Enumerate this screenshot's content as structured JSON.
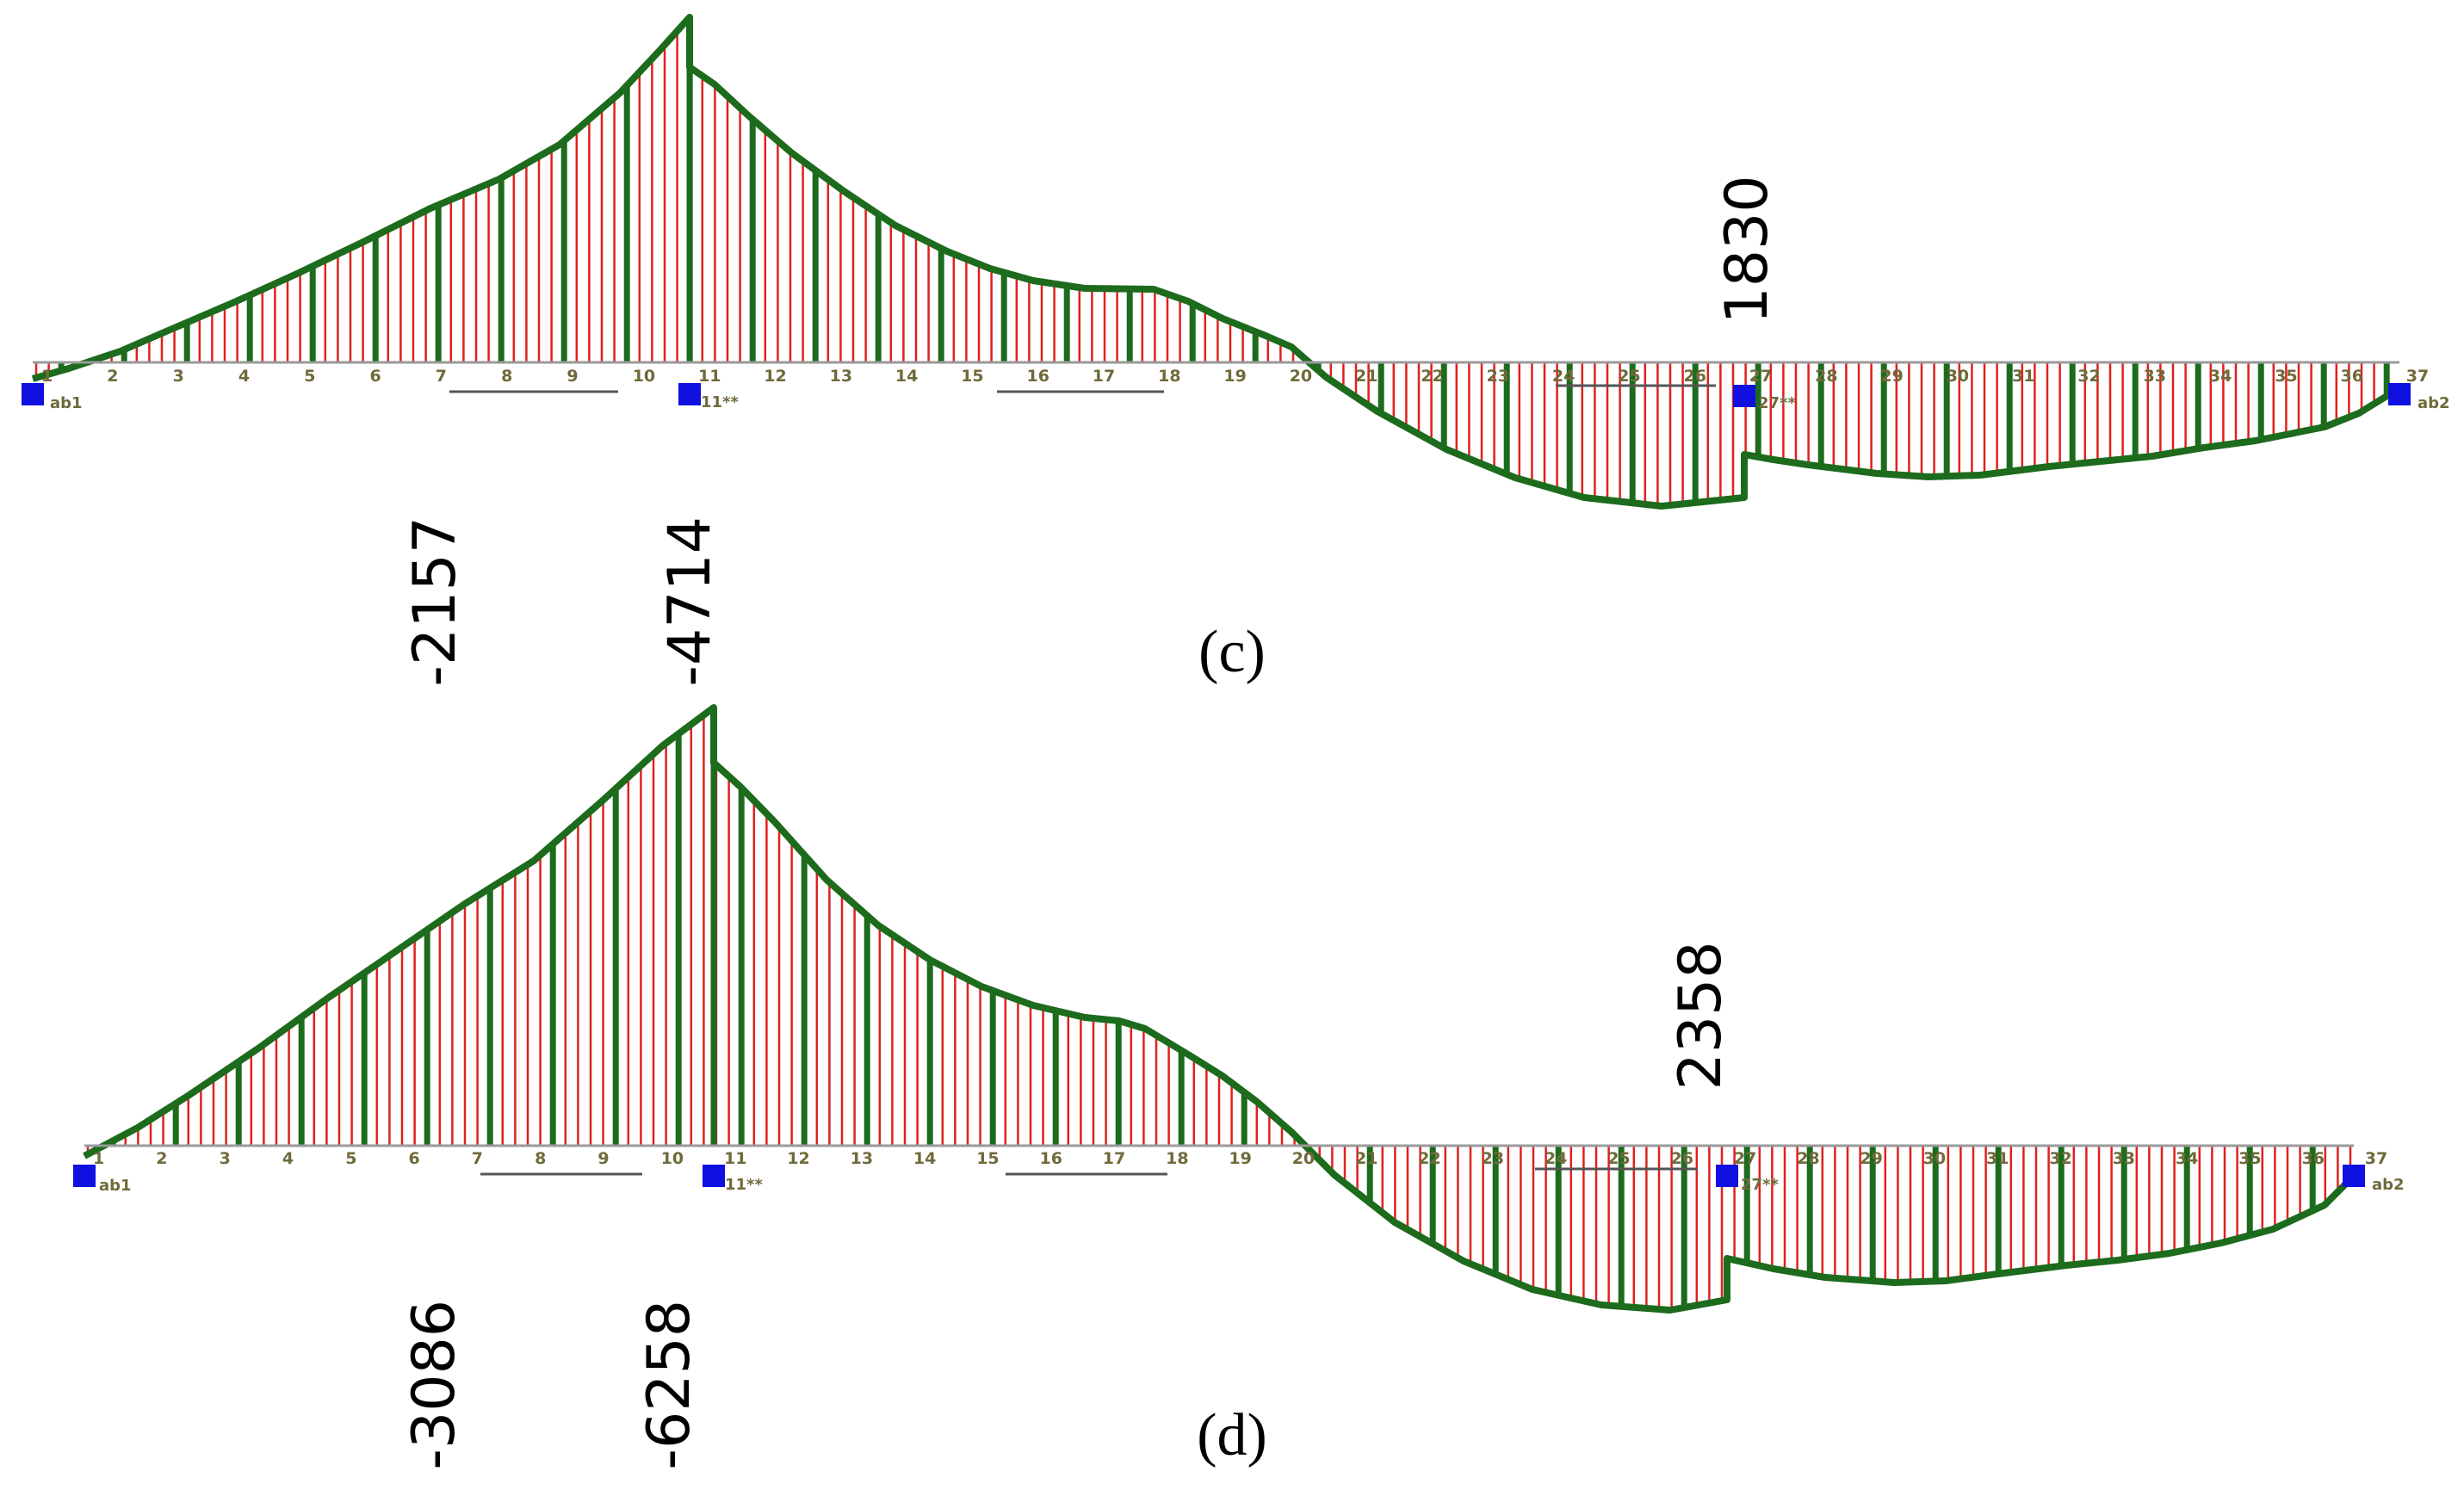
{
  "diagrams": [
    {
      "id": "c",
      "caption": "(c)",
      "values": [
        {
          "text": "-2157"
        },
        {
          "text": "-4714"
        },
        {
          "text": "1830"
        }
      ],
      "supports": [
        "ab1",
        "11**",
        "27**",
        "ab2"
      ],
      "node_labels": [
        "1",
        "2",
        "3",
        "4",
        "5",
        "6",
        "7",
        "8",
        "9",
        "10",
        "11",
        "12",
        "13",
        "14",
        "15",
        "16",
        "17",
        "18",
        "19",
        "20",
        "21",
        "22",
        "23",
        "24",
        "25",
        "26",
        "27",
        "28",
        "29",
        "30",
        "31",
        "32",
        "33",
        "34",
        "35",
        "36",
        "37"
      ]
    },
    {
      "id": "d",
      "caption": "(d)",
      "values": [
        {
          "text": "-3086"
        },
        {
          "text": "-6258"
        },
        {
          "text": "2358"
        }
      ],
      "supports": [
        "ab1",
        "11**",
        "27**",
        "ab2"
      ],
      "node_labels": [
        "1",
        "2",
        "3",
        "4",
        "5",
        "6",
        "7",
        "8",
        "9",
        "10",
        "11",
        "12",
        "13",
        "14",
        "15",
        "16",
        "17",
        "18",
        "19",
        "20",
        "21",
        "22",
        "23",
        "24",
        "25",
        "26",
        "27",
        "28",
        "29",
        "30",
        "31",
        "32",
        "33",
        "34",
        "35",
        "36",
        "37"
      ]
    }
  ],
  "colors": {
    "outline": "#1d6b1d",
    "hatch_red": "#e02020",
    "hatch_green": "#1d6b1d",
    "support": "#1010e0",
    "axis": "#9a9a9a"
  }
}
